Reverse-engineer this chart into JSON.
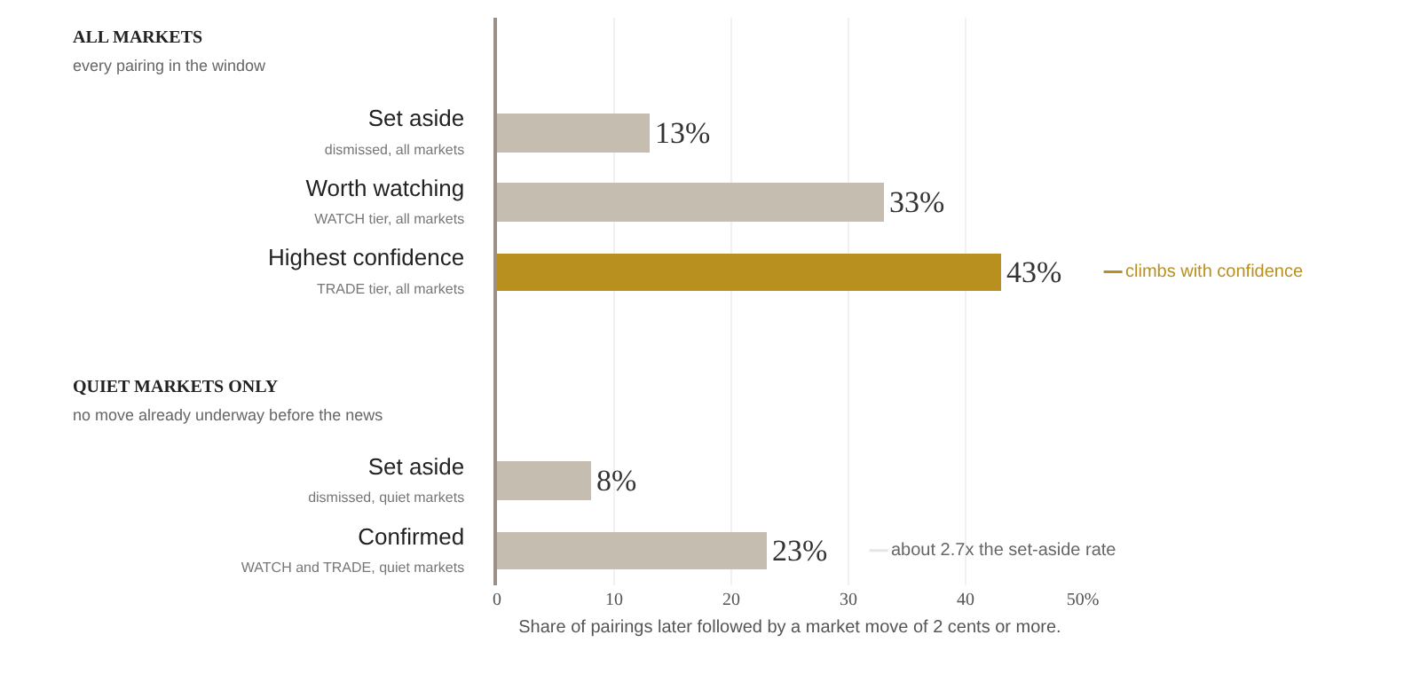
{
  "chart_data": {
    "type": "bar",
    "orientation": "horizontal",
    "categories": [
      "Set aside\ndismissed, all markets",
      "Worth watching\nWATCH tier, all markets",
      "Highest confidence\nTRADE tier, all markets",
      null,
      null,
      "Set aside\ndismissed, quiet markets",
      "Confirmed\nWATCH and TRADE, quiet markets"
    ],
    "values": [
      13,
      33,
      43,
      null,
      null,
      8,
      23
    ],
    "value_labels": [
      "13%",
      "33%",
      "43%",
      null,
      null,
      "8%",
      "23%"
    ],
    "colors": [
      "#c5beb0",
      "#c5beb0",
      "#b89020",
      null,
      null,
      "#c5beb0",
      "#c5beb0"
    ],
    "xlim": [
      0,
      50
    ],
    "xticks": [
      0,
      10,
      20,
      30,
      40,
      {
        "value": 50,
        "label": "50%"
      }
    ],
    "xlabel": "Share of pairings later followed by a market move of 2 cents or more.",
    "grid": "x",
    "annotations": [
      "ALL MARKETS",
      "every pairing in the window",
      "QUIET MARKETS ONLY",
      "no move already underway before the news",
      "climbs with confidence",
      "about 2.7x the set-aside rate"
    ]
  }
}
